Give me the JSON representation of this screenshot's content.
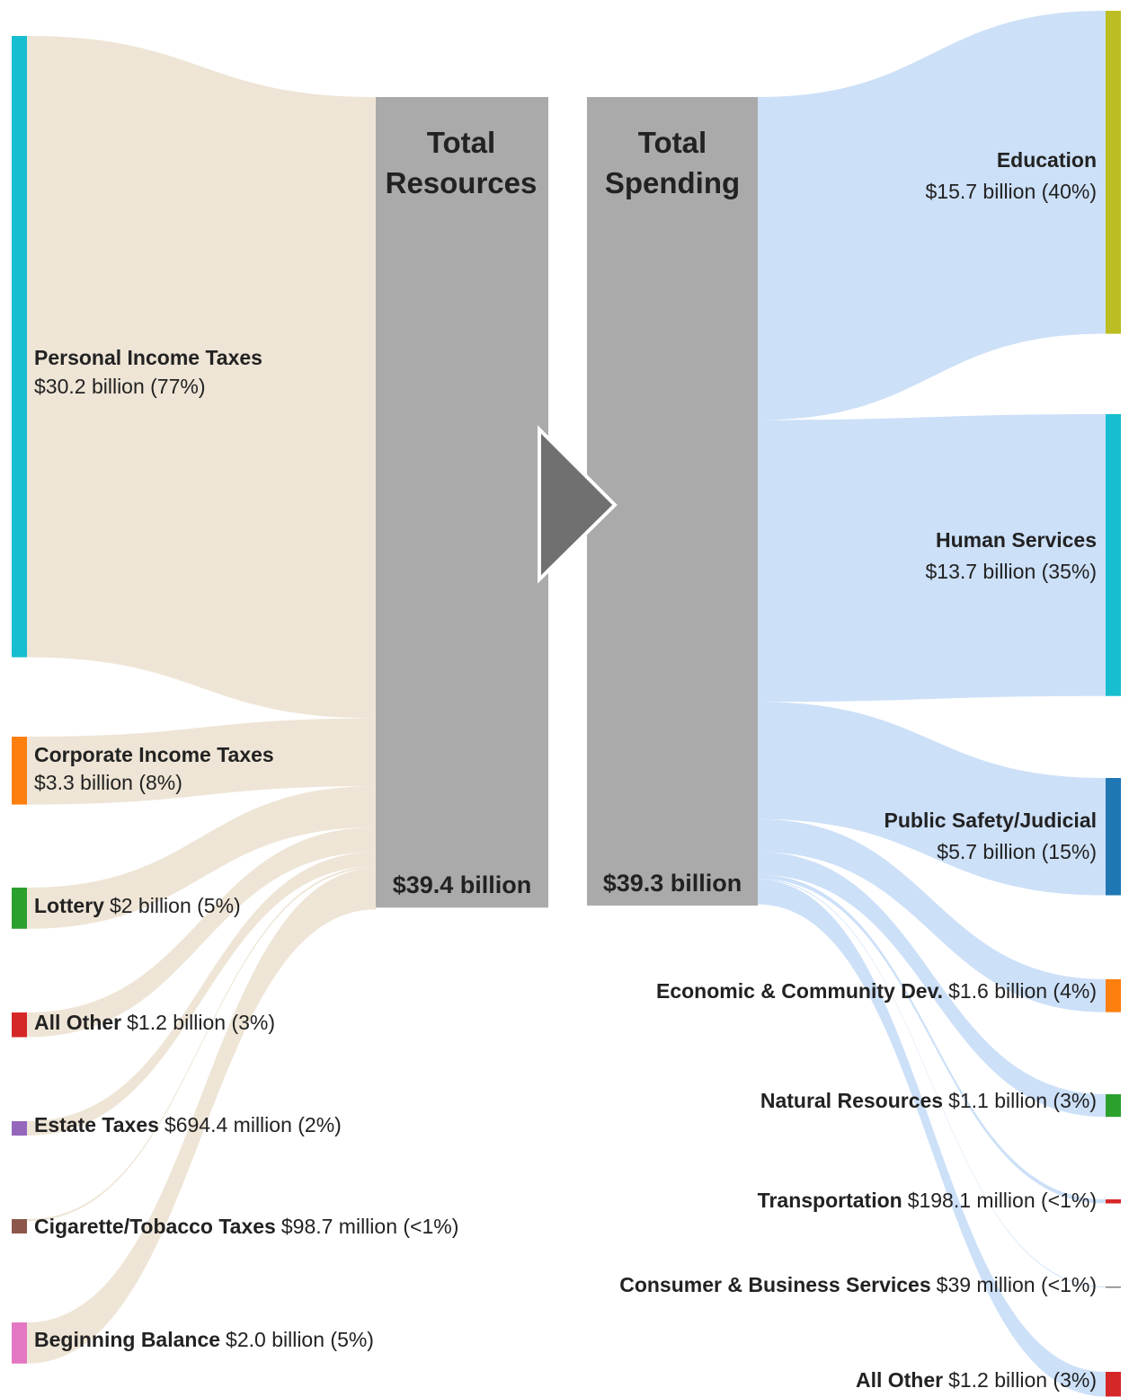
{
  "chart_data": {
    "type": "sankey",
    "left_title": "Total Resources",
    "right_title": "Total Spending",
    "total_resources": {
      "value": 39.4,
      "label": "$39.4 billion"
    },
    "total_spending": {
      "value": 39.3,
      "label": "$39.3 billion"
    },
    "sources": {
      "names": [
        "Personal Income Taxes",
        "Corporate Income Taxes",
        "Lottery",
        "All Other",
        "Estate Taxes",
        "Cigarette/Tobacco Taxes",
        "Beginning Balance"
      ],
      "values": [
        30.2,
        3.3,
        2,
        1.2,
        0.6944,
        0.0987,
        2.0
      ],
      "value_labels": [
        "$30.2 billion (77%)",
        "$3.3 billion (8%)",
        "$2 billion (5%)",
        "$1.2 billion (3%)",
        "$694.4 million (2%)",
        "$98.7 million (<1%)",
        "$2.0 billion (5%)"
      ],
      "colors": [
        "#17becf",
        "#ff7f0e",
        "#2ca02c",
        "#d62728",
        "#9467bd",
        "#8c564b",
        "#e377c2"
      ],
      "flow_color": "#ede4d4"
    },
    "uses": {
      "names": [
        "Education",
        "Human Services",
        "Public Safety/Judicial",
        "Economic & Community Dev.",
        "Natural Resources",
        "Transportation",
        "Consumer & Business Services",
        "All Other"
      ],
      "values": [
        15.7,
        13.7,
        5.7,
        1.6,
        1.1,
        0.1981,
        0.039,
        1.2
      ],
      "value_labels": [
        "$15.7 billion (40%)",
        "$13.7 billion (35%)",
        "$5.7 billion (15%)",
        "$1.6 billion (4%)",
        "$1.1 billion (3%)",
        "$198.1 million (<1%)",
        "$39 million (<1%)",
        "$1.2 billion (3%)"
      ],
      "colors": [
        "#bcbd22",
        "#17becf",
        "#1f77b4",
        "#ff7f0e",
        "#2ca02c",
        "#d62728",
        "#7f7f7f",
        "#d62728"
      ],
      "flow_color": "#c6ddf7"
    }
  }
}
